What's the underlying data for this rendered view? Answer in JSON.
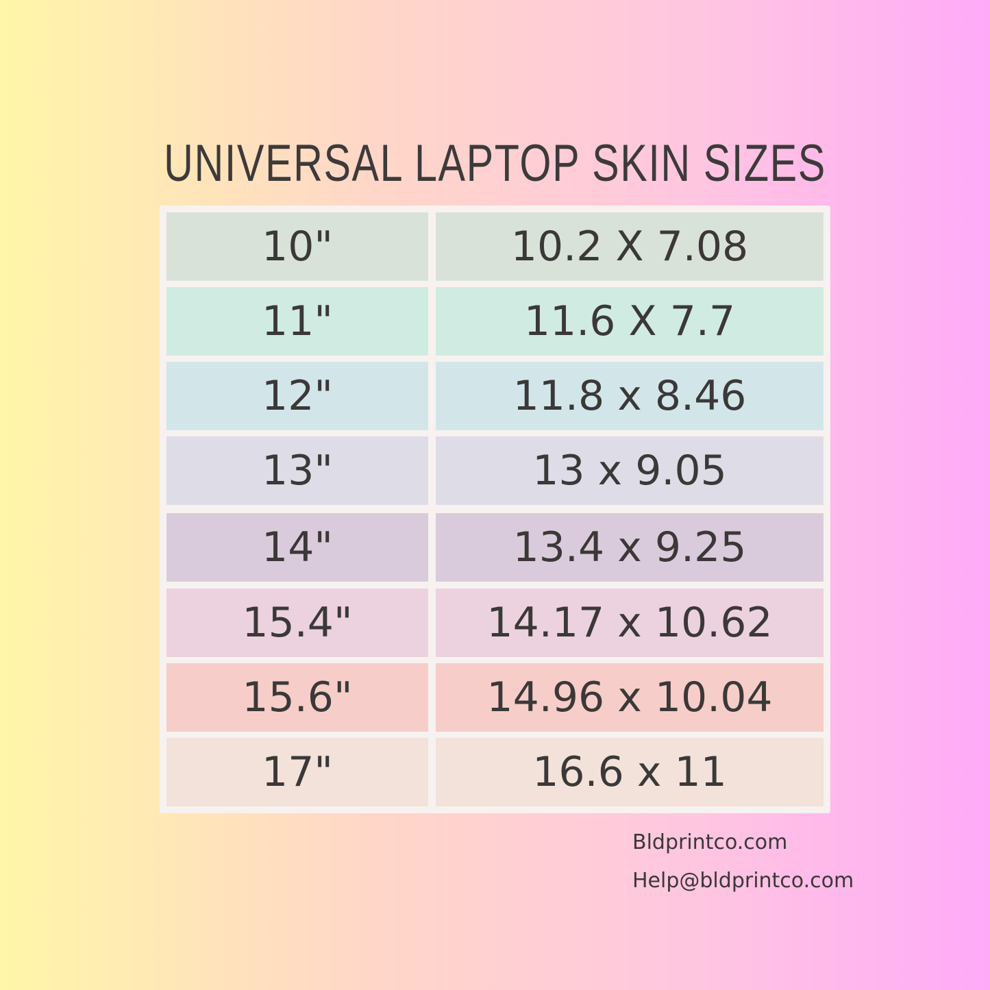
{
  "header": {
    "title": "UNIVERSAL LAPTOP SKIN SIZES"
  },
  "table": {
    "rows": [
      [
        "10\"",
        "10.2 X 7.08"
      ],
      [
        "11\"",
        "11.6 X 7.7"
      ],
      [
        "12\"",
        "11.8 x 8.46"
      ],
      [
        "13\"",
        "13 x 9.05"
      ],
      [
        "14\"",
        "13.4 x 9.25"
      ],
      [
        "15.4\"",
        "14.17 x 10.62"
      ],
      [
        "15.6\"",
        "14.96 x 10.04"
      ],
      [
        "17\"",
        "16.6 x 11"
      ]
    ]
  },
  "footer": {
    "website": "Bldprintco.com",
    "email": "Help@bldprintco.com"
  }
}
